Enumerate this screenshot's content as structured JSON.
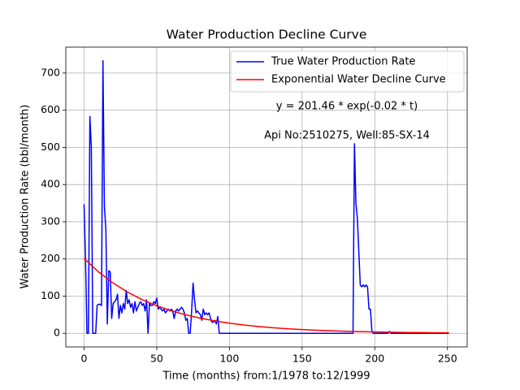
{
  "chart_data": {
    "type": "line",
    "title": "Water Production Decline Curve",
    "x_label": "Time (months) from:1/1978 to:12/1999",
    "y_label": "Water Production Rate (bbl/month)",
    "annotations": [
      "y = 201.46 * exp(-0.02 * t)",
      "Api No:2510275, Well:85-SX-14"
    ],
    "xlim": [
      -12.55,
      263.55
    ],
    "xticks": [
      0,
      50,
      100,
      150,
      200,
      250
    ],
    "ylim": [
      -36.65,
      769.65
    ],
    "yticks": [
      0,
      100,
      200,
      300,
      400,
      500,
      600,
      700
    ],
    "grid": true,
    "legend": "upper right",
    "series": [
      {
        "name": "True Water Production Rate",
        "color": "#0000ff",
        "x": [
          0,
          1,
          2,
          3,
          4,
          5,
          6,
          7,
          8,
          9,
          10,
          11,
          12,
          13,
          14,
          15,
          16,
          17,
          18,
          19,
          20,
          21,
          22,
          23,
          24,
          25,
          26,
          27,
          28,
          29,
          30,
          31,
          32,
          33,
          34,
          35,
          36,
          37,
          38,
          39,
          40,
          41,
          42,
          43,
          44,
          45,
          46,
          47,
          48,
          49,
          50,
          51,
          52,
          53,
          54,
          55,
          56,
          57,
          58,
          59,
          60,
          61,
          62,
          63,
          64,
          65,
          66,
          67,
          68,
          69,
          70,
          71,
          72,
          73,
          74,
          75,
          76,
          77,
          78,
          79,
          80,
          81,
          82,
          83,
          84,
          85,
          86,
          87,
          88,
          89,
          90,
          91,
          92,
          93,
          185,
          186,
          187,
          188,
          189,
          190,
          191,
          192,
          193,
          194,
          195,
          196,
          197,
          198,
          199,
          209,
          210,
          211,
          251
        ],
        "values": [
          347,
          200,
          0,
          0,
          583,
          500,
          0,
          0,
          0,
          75,
          78,
          78,
          75,
          733,
          340,
          280,
          25,
          168,
          165,
          40,
          80,
          85,
          90,
          105,
          40,
          75,
          55,
          80,
          65,
          115,
          80,
          90,
          70,
          80,
          55,
          85,
          60,
          70,
          80,
          85,
          75,
          80,
          60,
          90,
          0,
          80,
          75,
          75,
          85,
          80,
          95,
          65,
          70,
          65,
          60,
          65,
          55,
          60,
          65,
          60,
          65,
          60,
          40,
          60,
          65,
          60,
          65,
          70,
          65,
          55,
          35,
          40,
          0,
          0,
          60,
          135,
          90,
          55,
          60,
          55,
          50,
          35,
          65,
          50,
          55,
          50,
          55,
          40,
          30,
          30,
          35,
          25,
          45,
          0,
          0,
          510,
          350,
          310,
          220,
          130,
          125,
          130,
          125,
          130,
          125,
          65,
          65,
          5,
          0,
          0,
          5,
          0,
          0
        ]
      },
      {
        "name": "Exponential Water Decline Curve",
        "color": "#ff0000",
        "x": [
          0,
          10,
          20,
          30,
          40,
          50,
          60,
          70,
          80,
          90,
          100,
          110,
          120,
          130,
          140,
          150,
          160,
          170,
          180,
          190,
          200,
          210,
          220,
          230,
          240,
          250,
          251
        ],
        "values": [
          201.46,
          164.94,
          135.04,
          110.56,
          90.52,
          74.11,
          60.68,
          49.68,
          40.67,
          33.3,
          27.26,
          22.32,
          18.28,
          14.96,
          12.25,
          10.03,
          8.21,
          6.72,
          5.5,
          4.51,
          3.69,
          3.02,
          2.47,
          2.02,
          1.66,
          1.36,
          1.33
        ]
      }
    ]
  }
}
